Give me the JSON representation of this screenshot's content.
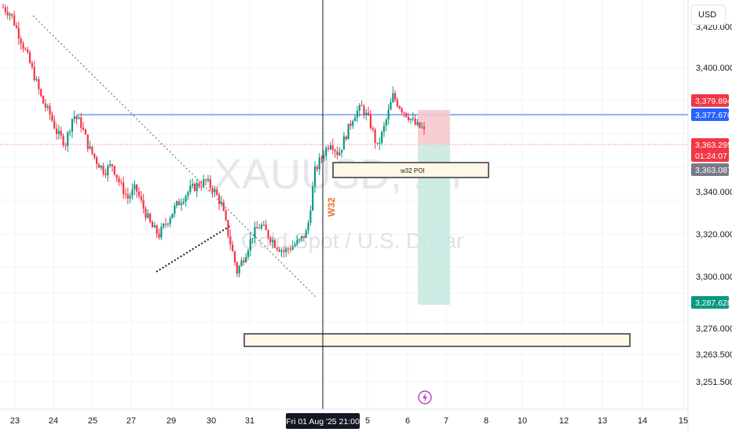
{
  "symbol": "XAUUSD, 2h",
  "description": "Gold Spot / U.S. Dollar",
  "currency": "USD",
  "crosshair_label": "Fri 01 Aug '25   21:00",
  "annotations": {
    "poi_label": "w32 POI",
    "week_label": "W32"
  },
  "colors": {
    "up": "#089981",
    "down": "#f23645",
    "blue_line": "#2962ff",
    "red_tag": "#f23645",
    "gray_tag": "#787b86",
    "green_tag": "#089981"
  },
  "chart_data": {
    "type": "candlestick",
    "x_ticks": [
      "23",
      "24",
      "25",
      "27",
      "29",
      "30",
      "31",
      "Fri 01 Aug '25 21:00",
      "5",
      "6",
      "7",
      "8",
      "10",
      "12",
      "13",
      "14",
      "15"
    ],
    "y_ticks": [
      3400.0,
      3380.0,
      3360.0,
      3340.0,
      3320.0,
      3300.0,
      3276.0,
      3263.5,
      3251.5
    ],
    "price_tags": [
      {
        "value": "3,379.894",
        "color": "#f23645"
      },
      {
        "value": "3,377.676",
        "color": "#2962ff"
      },
      {
        "value": "3,363.295",
        "color": "#f23645",
        "countdown": "01:24:07"
      },
      {
        "value": "3,363.087",
        "color": "#787b86"
      },
      {
        "value": "3,287.628",
        "color": "#089981"
      }
    ],
    "close_path": [
      3436,
      3432,
      3420,
      3408,
      3395,
      3380,
      3372,
      3360,
      3355,
      3372,
      3366,
      3352,
      3344,
      3338,
      3342,
      3330,
      3322,
      3328,
      3316,
      3305,
      3300,
      3308,
      3316,
      3322,
      3327,
      3330,
      3332,
      3327,
      3318,
      3298,
      3278,
      3288,
      3300,
      3306,
      3300,
      3294,
      3290,
      3293,
      3296,
      3302,
      3338,
      3348,
      3356,
      3348,
      3360,
      3372,
      3376,
      3368,
      3352,
      3366,
      3383,
      3376,
      3371,
      3365,
      3363.295
    ],
    "horizontal_line": 3377.676,
    "long_position": {
      "entry": 3363.295,
      "stop": 3379.894,
      "target": 3287.628
    },
    "zones": [
      {
        "label": "w32 POI",
        "top": 3356,
        "bottom": 3350
      },
      {
        "label": "",
        "top": 3272,
        "bottom": 3268
      }
    ],
    "ylim": [
      3245,
      3440
    ]
  }
}
